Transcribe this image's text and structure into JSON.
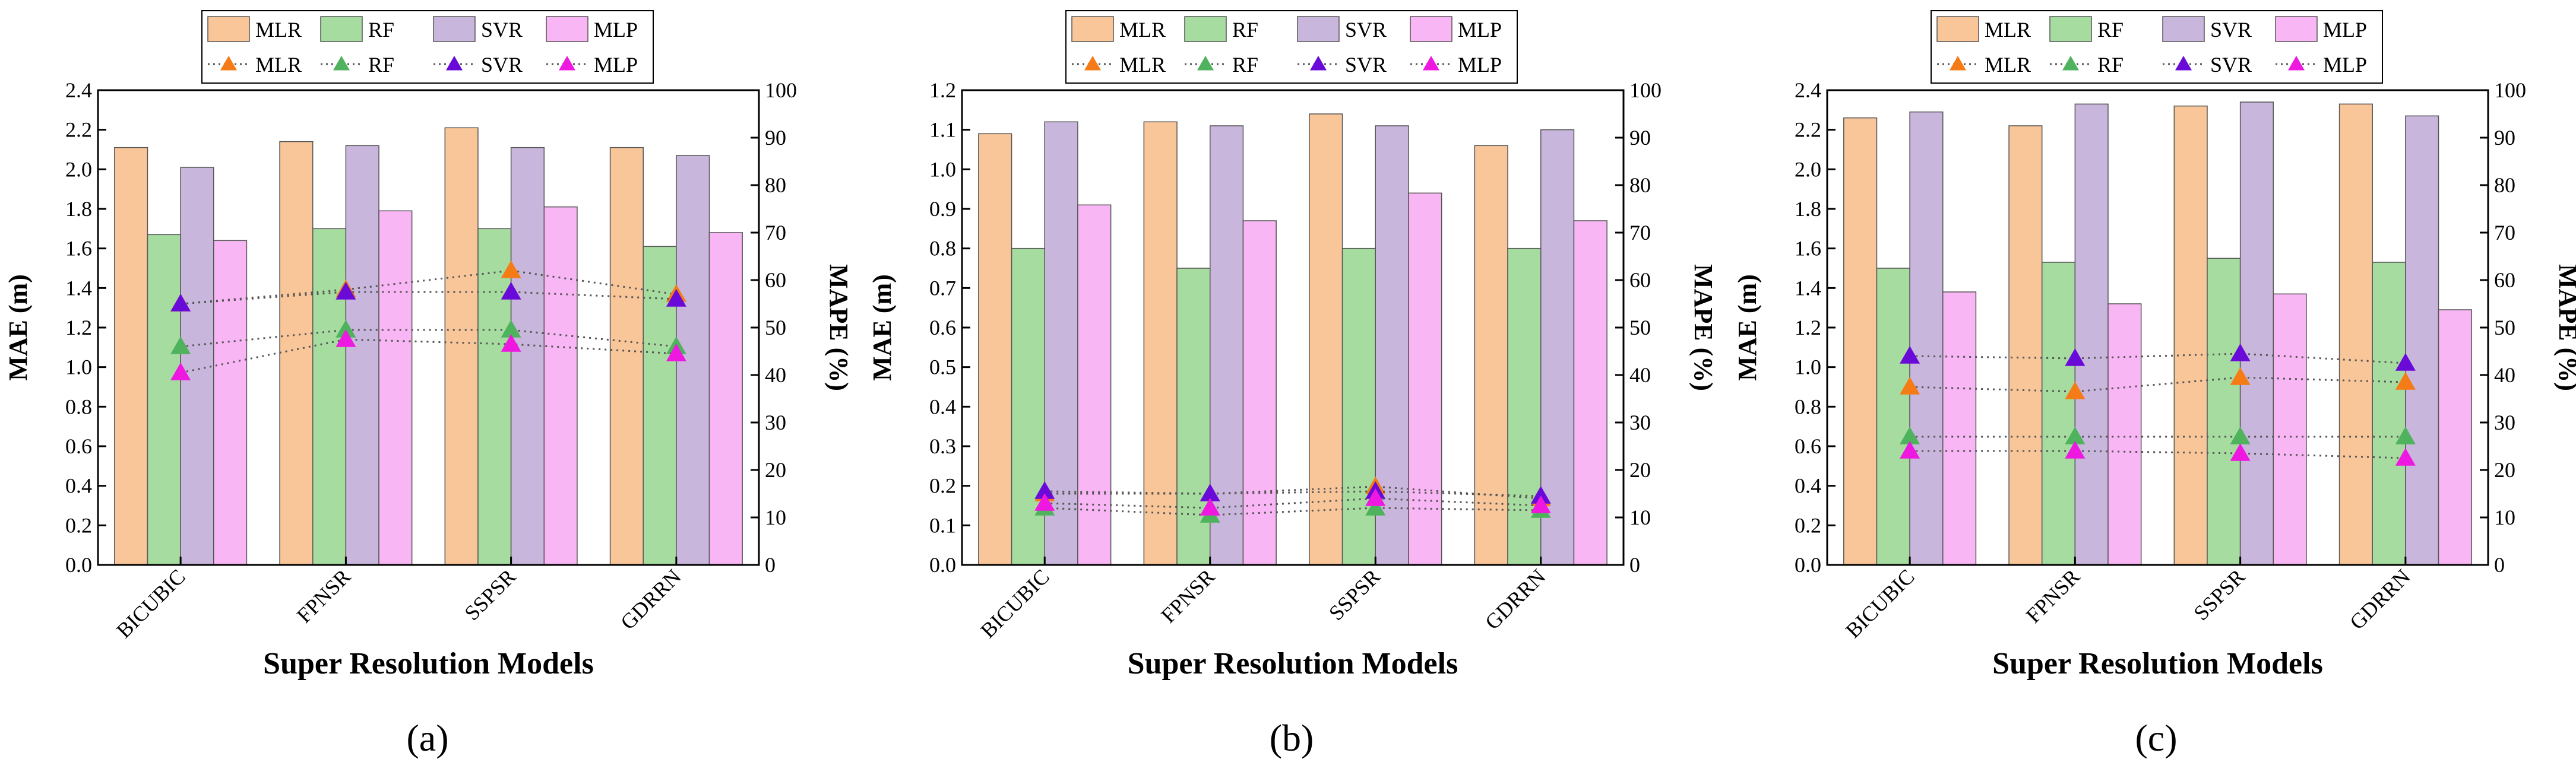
{
  "figure": {
    "series_names": [
      "MLR",
      "RF",
      "SVR",
      "MLP"
    ],
    "colors": {
      "MLR_bar": "#f9c69a",
      "RF_bar": "#a6dca0",
      "SVR_bar": "#c8b6dc",
      "MLP_bar": "#f8b6f4",
      "MLR_line": "#f47b16",
      "RF_line": "#4fb25c",
      "SVR_line": "#6a0ad8",
      "MLP_line": "#ee18e0"
    }
  },
  "chart_data": [
    {
      "type": "bar",
      "label": "(a)",
      "categories": [
        "BICUBIC",
        "FPNSR",
        "SSPSR",
        "GDRRN"
      ],
      "xlabel": "Super Resolution Models",
      "ylabel": "MAE (m)",
      "y2label": "MAPE (%)",
      "ylim": [
        0,
        2.4
      ],
      "y2lim": [
        0,
        100
      ],
      "yticks": [
        "0.0",
        "0.2",
        "0.4",
        "0.6",
        "0.8",
        "1.0",
        "1.2",
        "1.4",
        "1.6",
        "1.8",
        "2.0",
        "2.2",
        "2.4"
      ],
      "y2ticks": [
        "0",
        "10",
        "20",
        "30",
        "40",
        "50",
        "60",
        "70",
        "80",
        "90",
        "100"
      ],
      "bar_series": [
        {
          "name": "MLR",
          "values": [
            2.11,
            2.14,
            2.21,
            2.11
          ]
        },
        {
          "name": "RF",
          "values": [
            1.67,
            1.7,
            1.7,
            1.61
          ]
        },
        {
          "name": "SVR",
          "values": [
            2.01,
            2.12,
            2.11,
            2.07
          ]
        },
        {
          "name": "MLP",
          "values": [
            1.64,
            1.79,
            1.81,
            1.68
          ]
        }
      ],
      "line_series": [
        {
          "name": "MLR",
          "values": [
            55,
            58,
            62,
            57
          ]
        },
        {
          "name": "RF",
          "values": [
            46,
            49.5,
            49.5,
            46
          ]
        },
        {
          "name": "SVR",
          "values": [
            55,
            57.5,
            57.5,
            56
          ]
        },
        {
          "name": "MLP",
          "values": [
            40.5,
            47.5,
            46.5,
            44.5
          ]
        }
      ]
    },
    {
      "type": "bar",
      "label": "(b)",
      "categories": [
        "BICUBIC",
        "FPNSR",
        "SSPSR",
        "GDRRN"
      ],
      "xlabel": "Super Resolution Models",
      "ylabel": "MAE (m)",
      "y2label": "MAPE (%)",
      "ylim": [
        0,
        1.2
      ],
      "y2lim": [
        0,
        100
      ],
      "yticks": [
        "0.0",
        "0.1",
        "0.2",
        "0.3",
        "0.4",
        "0.5",
        "0.6",
        "0.7",
        "0.8",
        "0.9",
        "1.0",
        "1.1",
        "1.2"
      ],
      "y2ticks": [
        "0",
        "10",
        "20",
        "30",
        "40",
        "50",
        "60",
        "70",
        "80",
        "90",
        "100"
      ],
      "bar_series": [
        {
          "name": "MLR",
          "values": [
            1.09,
            1.12,
            1.14,
            1.06
          ]
        },
        {
          "name": "RF",
          "values": [
            0.8,
            0.75,
            0.8,
            0.8
          ]
        },
        {
          "name": "SVR",
          "values": [
            1.12,
            1.11,
            1.11,
            1.1
          ]
        },
        {
          "name": "MLP",
          "values": [
            0.91,
            0.87,
            0.94,
            0.87
          ]
        }
      ],
      "line_series": [
        {
          "name": "MLR",
          "values": [
            15,
            15,
            16.5,
            14
          ]
        },
        {
          "name": "RF",
          "values": [
            12,
            10.5,
            12,
            11.5
          ]
        },
        {
          "name": "SVR",
          "values": [
            15.5,
            15,
            15.5,
            14.5
          ]
        },
        {
          "name": "MLP",
          "values": [
            13,
            12,
            14,
            12.5
          ]
        }
      ]
    },
    {
      "type": "bar",
      "label": "(c)",
      "categories": [
        "BICUBIC",
        "FPNSR",
        "SSPSR",
        "GDRRN"
      ],
      "xlabel": "Super Resolution Models",
      "ylabel": "MAE (m)",
      "y2label": "MAPE (%)",
      "ylim": [
        0,
        2.4
      ],
      "y2lim": [
        0,
        100
      ],
      "yticks": [
        "0.0",
        "0.2",
        "0.4",
        "0.6",
        "0.8",
        "1.0",
        "1.2",
        "1.4",
        "1.6",
        "1.8",
        "2.0",
        "2.2",
        "2.4"
      ],
      "y2ticks": [
        "0",
        "10",
        "20",
        "30",
        "40",
        "50",
        "60",
        "70",
        "80",
        "90",
        "100"
      ],
      "bar_series": [
        {
          "name": "MLR",
          "values": [
            2.26,
            2.22,
            2.32,
            2.33
          ]
        },
        {
          "name": "RF",
          "values": [
            1.5,
            1.53,
            1.55,
            1.53
          ]
        },
        {
          "name": "SVR",
          "values": [
            2.29,
            2.33,
            2.34,
            2.27
          ]
        },
        {
          "name": "MLP",
          "values": [
            1.38,
            1.32,
            1.37,
            1.29
          ]
        }
      ],
      "line_series": [
        {
          "name": "MLR",
          "values": [
            37.5,
            36.5,
            39.5,
            38.5
          ]
        },
        {
          "name": "RF",
          "values": [
            27,
            27,
            27,
            27
          ]
        },
        {
          "name": "SVR",
          "values": [
            44,
            43.5,
            44.5,
            42.5
          ]
        },
        {
          "name": "MLP",
          "values": [
            24,
            24,
            23.5,
            22.5
          ]
        }
      ]
    }
  ]
}
